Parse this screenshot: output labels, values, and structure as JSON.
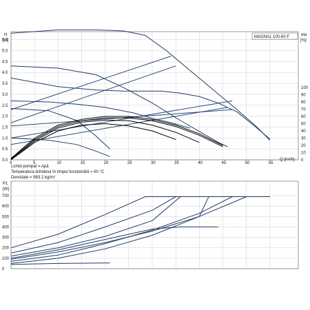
{
  "chart_data": [
    {
      "type": "line",
      "model_label": "MAGNA1 100-60 F",
      "ylabel": "H",
      "yunit": "[m]",
      "y2label": "eta",
      "y2unit": "[%]",
      "xlabel": "Q [m³/h]",
      "xlim": [
        0,
        60
      ],
      "ylim": [
        0,
        6.5
      ],
      "y2lim": [
        0,
        100
      ],
      "x_ticks": [
        0,
        5,
        10,
        15,
        20,
        25,
        30,
        35,
        40,
        45,
        50,
        55
      ],
      "y_ticks": [
        0.0,
        0.5,
        1.0,
        1.5,
        2.0,
        2.5,
        3.0,
        3.5,
        4.0,
        4.5,
        5.0,
        5.5,
        6.0,
        6.5
      ],
      "y2_ticks": [
        0,
        10,
        20,
        30,
        40,
        50,
        60,
        70,
        80,
        90,
        100
      ],
      "grid": true,
      "head_series": [
        {
          "x": [
            -2,
            10,
            18,
            24,
            28.5,
            33,
            38,
            43,
            48,
            52,
            55
          ],
          "y": [
            5.8,
            5.95,
            5.95,
            5.9,
            5.7,
            5.0,
            4.1,
            3.2,
            2.3,
            1.55,
            0.9
          ]
        },
        {
          "x": [
            -2,
            10,
            18,
            24,
            29,
            32,
            36,
            40,
            44,
            48,
            52,
            55
          ],
          "y": [
            3.75,
            3.35,
            3.2,
            3.15,
            3.15,
            3.15,
            3.05,
            2.9,
            2.6,
            2.2,
            1.5,
            0.95
          ]
        },
        {
          "x": [
            -2,
            10,
            18,
            24,
            30,
            36,
            40,
            44,
            46
          ],
          "y": [
            4.3,
            4.2,
            3.9,
            3.3,
            2.6,
            1.8,
            1.3,
            0.8,
            0.6
          ]
        },
        {
          "x": [
            -2,
            8,
            14,
            20,
            26,
            30,
            34,
            38
          ],
          "y": [
            2.7,
            2.65,
            2.55,
            2.4,
            2.15,
            1.9,
            1.7,
            1.45
          ]
        },
        {
          "x": [
            -2,
            8,
            14,
            18,
            21
          ],
          "y": [
            2.35,
            2.25,
            1.8,
            1.1,
            0.5
          ]
        },
        {
          "x": [
            -2,
            8,
            14,
            18,
            21
          ],
          "y": [
            1.0,
            0.9,
            0.7,
            0.4,
            0.15
          ]
        }
      ],
      "system_lines": [
        {
          "x": [
            -2,
            34
          ],
          "y": [
            2.3,
            4.75
          ]
        },
        {
          "x": [
            -2,
            35
          ],
          "y": [
            1.7,
            4.3
          ]
        },
        {
          "x": [
            -2,
            47
          ],
          "y": [
            1.55,
            2.3
          ]
        },
        {
          "x": [
            -2,
            47
          ],
          "y": [
            1.0,
            2.7
          ]
        },
        {
          "x": [
            -2,
            46
          ],
          "y": [
            0.7,
            2.4
          ]
        }
      ],
      "efficiency_series": [
        {
          "x": [
            0,
            5,
            10,
            15,
            20,
            25,
            30,
            35,
            40,
            45
          ],
          "y": [
            2,
            30,
            48,
            56,
            60,
            60,
            56,
            48,
            36,
            20
          ]
        },
        {
          "x": [
            0,
            5,
            10,
            15,
            20,
            25,
            30,
            35,
            40,
            45
          ],
          "y": [
            1,
            28,
            46,
            54,
            58,
            58,
            54,
            46,
            34,
            18
          ]
        },
        {
          "x": [
            0,
            5,
            10,
            15,
            20,
            25,
            30,
            35,
            40
          ],
          "y": [
            0,
            26,
            44,
            52,
            55,
            54,
            48,
            38,
            24
          ]
        },
        {
          "x": [
            0,
            5,
            10,
            15,
            20,
            25,
            30,
            35
          ],
          "y": [
            0,
            24,
            40,
            48,
            50,
            47,
            40,
            28
          ]
        }
      ]
    },
    {
      "type": "line",
      "ylabel": "P1",
      "yunit": "[W]",
      "xlim": [
        0,
        60
      ],
      "ylim": [
        0,
        700
      ],
      "y_ticks": [
        0,
        100,
        200,
        300,
        400,
        500,
        600,
        700
      ],
      "grid": true,
      "power_series": [
        {
          "x": [
            -2,
            10,
            20,
            28.5,
            55
          ],
          "y": [
            200,
            330,
            520,
            690,
            690
          ]
        },
        {
          "x": [
            -2,
            10,
            20,
            30,
            35,
            55
          ],
          "y": [
            150,
            250,
            400,
            560,
            690,
            690
          ]
        },
        {
          "x": [
            -2,
            10,
            20,
            30,
            36,
            55
          ],
          "y": [
            120,
            200,
            310,
            460,
            690,
            690
          ]
        },
        {
          "x": [
            -2,
            10,
            20,
            30,
            40,
            47,
            55
          ],
          "y": [
            70,
            130,
            240,
            370,
            530,
            690,
            690
          ]
        },
        {
          "x": [
            -2,
            10,
            20,
            30,
            40,
            42,
            55
          ],
          "y": [
            90,
            160,
            250,
            360,
            500,
            690,
            690
          ]
        },
        {
          "x": [
            -2,
            10,
            20,
            30,
            36,
            38,
            44
          ],
          "y": [
            100,
            180,
            280,
            380,
            400,
            400,
            400
          ]
        },
        {
          "x": [
            -2,
            10,
            20,
            30,
            40,
            50
          ],
          "y": [
            50,
            100,
            190,
            320,
            500,
            690
          ]
        },
        {
          "x": [
            -2,
            10,
            20,
            21
          ],
          "y": [
            40,
            50,
            55,
            55
          ]
        }
      ]
    }
  ],
  "info_lines": [
    "Lichid pompat = Apă",
    "Temperatura lichidului în timpul funcționării = 60 °C",
    "Densitate = 983.2 kg/m³"
  ]
}
